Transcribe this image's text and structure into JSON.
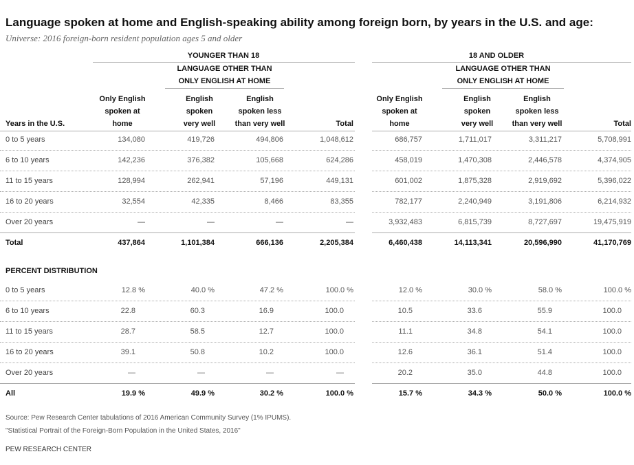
{
  "title": "Language spoken at home and English-speaking ability among foreign born, by years in the U.S. and age:",
  "subtitle": "Universe: 2016 foreign-born resident population ages 5 and older",
  "row_header": "Years in the U.S.",
  "groups": [
    {
      "label": "YOUNGER THAN 18",
      "sub_label": "LANGUAGE OTHER THAN\nONLY ENGLISH AT HOME",
      "columns": [
        "Only English\nspoken at\nhome",
        "English\nspoken\nvery well",
        "English\nspoken less\nthan very well",
        "Total"
      ]
    },
    {
      "label": "18 AND OLDER",
      "sub_label": "LANGUAGE OTHER THAN\nONLY ENGLISH AT HOME",
      "columns": [
        "Only English\nspoken at\nhome",
        "English\nspoken\nvery well",
        "English\nspoken less\nthan very well",
        "Total"
      ]
    }
  ],
  "counts": {
    "rows": [
      {
        "label": "0 to 5 years",
        "values": [
          "134,080",
          "419,726",
          "494,806",
          "1,048,612",
          "686,757",
          "1,711,017",
          "3,311,217",
          "5,708,991"
        ]
      },
      {
        "label": "6 to 10 years",
        "values": [
          "142,236",
          "376,382",
          "105,668",
          "624,286",
          "458,019",
          "1,470,308",
          "2,446,578",
          "4,374,905"
        ]
      },
      {
        "label": "11 to 15 years",
        "values": [
          "128,994",
          "262,941",
          "57,196",
          "449,131",
          "601,002",
          "1,875,328",
          "2,919,692",
          "5,396,022"
        ]
      },
      {
        "label": "16 to 20 years",
        "values": [
          "32,554",
          "42,335",
          "8,466",
          "83,355",
          "782,177",
          "2,240,949",
          "3,191,806",
          "6,214,932"
        ]
      },
      {
        "label": "Over 20 years",
        "values": [
          "—",
          "—",
          "—",
          "—",
          "3,932,483",
          "6,815,739",
          "8,727,697",
          "19,475,919"
        ]
      }
    ],
    "total": {
      "label": "Total",
      "values": [
        "437,864",
        "1,101,384",
        "666,136",
        "2,205,384",
        "6,460,438",
        "14,113,341",
        "20,596,990",
        "41,170,769"
      ]
    }
  },
  "percent": {
    "title": "PERCENT DISTRIBUTION",
    "rows": [
      {
        "label": "0 to 5 years",
        "values": [
          "12.8 %",
          "40.0 %",
          "47.2 %",
          "100.0 %",
          "12.0 %",
          "30.0 %",
          "58.0 %",
          "100.0 %"
        ]
      },
      {
        "label": "6 to 10 years",
        "values": [
          "22.8",
          "60.3",
          "16.9",
          "100.0",
          "10.5",
          "33.6",
          "55.9",
          "100.0"
        ]
      },
      {
        "label": "11 to 15 years",
        "values": [
          "28.7",
          "58.5",
          "12.7",
          "100.0",
          "11.1",
          "34.8",
          "54.1",
          "100.0"
        ]
      },
      {
        "label": "16 to 20 years",
        "values": [
          "39.1",
          "50.8",
          "10.2",
          "100.0",
          "12.6",
          "36.1",
          "51.4",
          "100.0"
        ]
      },
      {
        "label": "Over 20 years",
        "values": [
          "—",
          "—",
          "—",
          "—",
          "20.2",
          "35.0",
          "44.8",
          "100.0"
        ]
      }
    ],
    "total": {
      "label": "All",
      "values": [
        "19.9 %",
        "49.9 %",
        "30.2 %",
        "100.0 %",
        "15.7 %",
        "34.3 %",
        "50.0 %",
        "100.0 %"
      ]
    }
  },
  "source": [
    "Source: Pew Research Center tabulations of 2016 American Community Survey (1% IPUMS).",
    "\"Statistical Portrait of the Foreign-Born Population in the United States, 2016\""
  ],
  "footer": "PEW RESEARCH CENTER"
}
